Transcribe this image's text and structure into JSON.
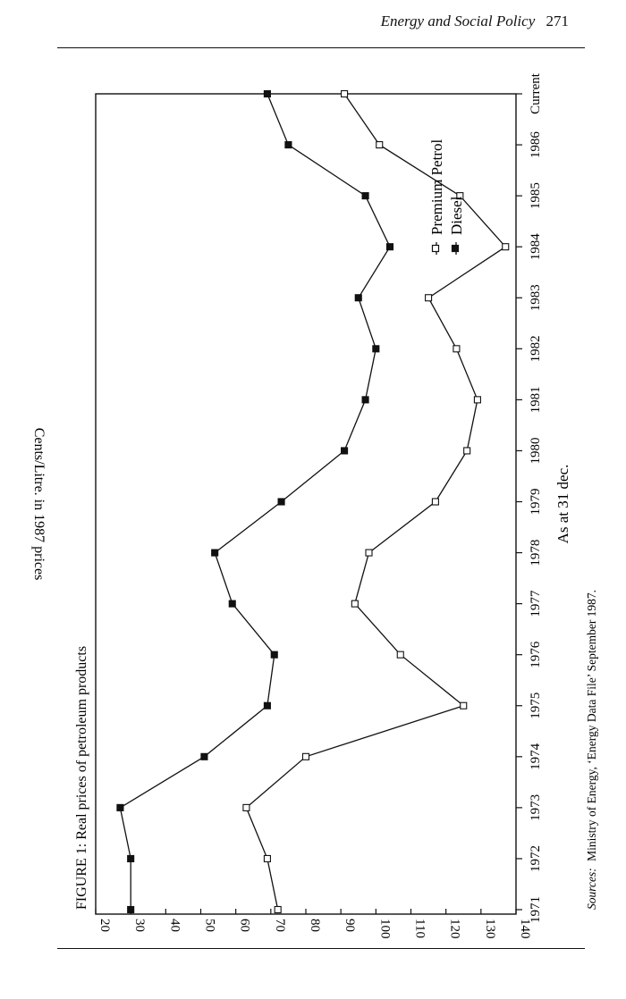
{
  "page": {
    "running_title": "Energy and Social Policy",
    "page_number": "271"
  },
  "figure": {
    "caption": "FIGURE 1: Real prices of petroleum products",
    "source_label": "Sources:",
    "source_text": "Ministry of Energy, ‘Energy Data File’ September 1987."
  },
  "chart_data": {
    "type": "line",
    "title": "FIGURE 1: Real prices of petroleum products",
    "xlabel": "As at 31 dec.",
    "ylabel": "Cents/Litre. in 1987 prices",
    "categories": [
      "1971",
      "1972",
      "1973",
      "1974",
      "1975",
      "1976",
      "1977",
      "1978",
      "1979",
      "1980",
      "1981",
      "1982",
      "1983",
      "1984",
      "1985",
      "1986",
      "Current"
    ],
    "ylim": [
      20,
      140
    ],
    "yticks": [
      20,
      30,
      40,
      50,
      60,
      70,
      80,
      90,
      100,
      110,
      120,
      130,
      140
    ],
    "grid": false,
    "legend_position": "upper right (rotated figure)",
    "series": [
      {
        "name": "Premium Petrol",
        "marker": "open-square",
        "values": [
          72,
          69,
          63,
          80,
          125,
          107,
          94,
          98,
          117,
          126,
          129,
          123,
          115,
          137,
          124,
          101,
          91
        ]
      },
      {
        "name": "Diesel",
        "marker": "filled-square",
        "values": [
          30,
          30,
          27,
          51,
          69,
          71,
          59,
          54,
          73,
          91,
          97,
          100,
          95,
          104,
          97,
          75,
          69
        ]
      }
    ]
  }
}
